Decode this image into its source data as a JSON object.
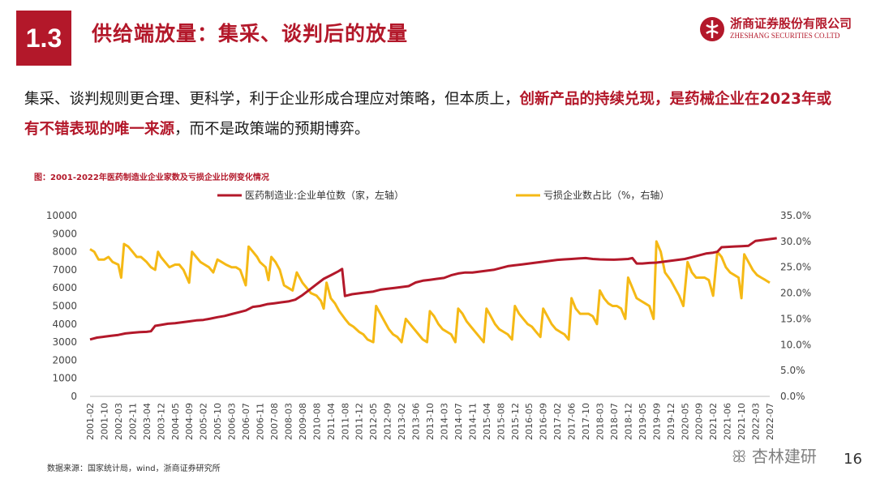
{
  "header": {
    "section_number": "1.3",
    "title": "供给端放量：集采、谈判后的放量",
    "logo_cn": "浙商证券股份有限公司",
    "logo_en": "ZHESHANG SECURITIES CO.LTD"
  },
  "body": {
    "part1": "集采、谈判规则更合理、更科学，利于企业形成合理应对策略，但本质上，",
    "part2_highlight": "创新产品的持续兑现，是药械企业在2023年或有不错表现的唯一来源",
    "part3": "，而不是政策端的预期博弈。"
  },
  "chart_caption": "图：2001-2022年医药制造业企业家数及亏损企业比例变化情况",
  "source": "数据来源：国家统计局，wind，浙商证券研究所",
  "page_number": "16",
  "watermark": "杏林建研",
  "colors": {
    "brand": "#b3182a",
    "series1": "#b3182a",
    "series2": "#f5b915"
  },
  "chart_data": {
    "type": "line",
    "x_tick_labels": [
      "2001-02",
      "2001-10",
      "2002-03",
      "2002-11",
      "2003-04",
      "2003-12",
      "2004-05",
      "2004-09",
      "2005-02",
      "2005-10",
      "2006-03",
      "2006-07",
      "2006-11",
      "2007-08",
      "2008-03",
      "2009-08",
      "2010-08",
      "2011-04",
      "2011-08",
      "2011-12",
      "2012-05",
      "2012-09",
      "2013-02",
      "2013-06",
      "2013-10",
      "2014-03",
      "2014-07",
      "2014-11",
      "2015-04",
      "2015-08",
      "2015-12",
      "2016-05",
      "2016-09",
      "2017-02",
      "2017-06",
      "2017-10",
      "2018-03",
      "2018-07",
      "2018-12",
      "2019-05",
      "2019-09",
      "2019-12",
      "2020-05",
      "2020-09",
      "2021-02",
      "2021-06",
      "2021-10",
      "2022-03",
      "2022-07"
    ],
    "y_left": {
      "min": 0,
      "max": 10000,
      "step": 1000,
      "ticks": [
        "0",
        "1000",
        "2000",
        "3000",
        "4000",
        "5000",
        "6000",
        "7000",
        "8000",
        "9000",
        "10000"
      ]
    },
    "y_right": {
      "min": 0,
      "max": 35,
      "step": 5,
      "ticks": [
        "0.0%",
        "5.0%",
        "10.0%",
        "15.0%",
        "20.0%",
        "25.0%",
        "30.0%",
        "35.0%"
      ]
    },
    "series": [
      {
        "name": "医药制造业:企业单位数（家，左轴）",
        "axis": "left",
        "points": [
          [
            0,
            3150
          ],
          [
            0.5,
            3250
          ],
          [
            1,
            3300
          ],
          [
            1.5,
            3350
          ],
          [
            2,
            3400
          ],
          [
            2.5,
            3480
          ],
          [
            3,
            3520
          ],
          [
            3.5,
            3550
          ],
          [
            4,
            3570
          ],
          [
            4.3,
            3600
          ],
          [
            4.6,
            3900
          ],
          [
            5,
            3950
          ],
          [
            5.5,
            4020
          ],
          [
            6,
            4050
          ],
          [
            6.5,
            4100
          ],
          [
            7,
            4150
          ],
          [
            7.5,
            4200
          ],
          [
            8,
            4230
          ],
          [
            8.5,
            4300
          ],
          [
            9,
            4380
          ],
          [
            9.5,
            4450
          ],
          [
            10,
            4550
          ],
          [
            10.5,
            4650
          ],
          [
            11,
            4750
          ],
          [
            11.5,
            4950
          ],
          [
            12,
            5000
          ],
          [
            12.5,
            5100
          ],
          [
            13,
            5150
          ],
          [
            13.5,
            5200
          ],
          [
            14,
            5250
          ],
          [
            14.5,
            5350
          ],
          [
            15,
            5600
          ],
          [
            15.5,
            5900
          ],
          [
            16,
            6200
          ],
          [
            16.5,
            6500
          ],
          [
            17,
            6700
          ],
          [
            17.5,
            6900
          ],
          [
            17.8,
            7050
          ],
          [
            18,
            5550
          ],
          [
            18.5,
            5650
          ],
          [
            19,
            5700
          ],
          [
            19.5,
            5750
          ],
          [
            20,
            5800
          ],
          [
            20.5,
            5900
          ],
          [
            21,
            5950
          ],
          [
            21.5,
            6000
          ],
          [
            22,
            6050
          ],
          [
            22.5,
            6100
          ],
          [
            23,
            6300
          ],
          [
            23.5,
            6400
          ],
          [
            24,
            6450
          ],
          [
            24.5,
            6500
          ],
          [
            25,
            6550
          ],
          [
            25.5,
            6700
          ],
          [
            26,
            6800
          ],
          [
            26.5,
            6850
          ],
          [
            27,
            6850
          ],
          [
            27.5,
            6900
          ],
          [
            28,
            6950
          ],
          [
            28.5,
            7000
          ],
          [
            29,
            7100
          ],
          [
            29.5,
            7200
          ],
          [
            30,
            7250
          ],
          [
            30.5,
            7300
          ],
          [
            31,
            7350
          ],
          [
            31.5,
            7400
          ],
          [
            32,
            7450
          ],
          [
            32.5,
            7500
          ],
          [
            33,
            7550
          ],
          [
            33.5,
            7580
          ],
          [
            34,
            7600
          ],
          [
            34.5,
            7630
          ],
          [
            35,
            7650
          ],
          [
            35.5,
            7600
          ],
          [
            36,
            7580
          ],
          [
            36.5,
            7570
          ],
          [
            37,
            7560
          ],
          [
            37.5,
            7580
          ],
          [
            38,
            7600
          ],
          [
            38.3,
            7650
          ],
          [
            38.6,
            7350
          ],
          [
            39,
            7350
          ],
          [
            39.5,
            7380
          ],
          [
            40,
            7400
          ],
          [
            40.5,
            7450
          ],
          [
            41,
            7500
          ],
          [
            41.5,
            7550
          ],
          [
            42,
            7600
          ],
          [
            42.5,
            7700
          ],
          [
            43,
            7800
          ],
          [
            43.5,
            7900
          ],
          [
            44,
            7950
          ],
          [
            44.3,
            8000
          ],
          [
            44.6,
            8250
          ],
          [
            45,
            8270
          ],
          [
            45.5,
            8290
          ],
          [
            46,
            8310
          ],
          [
            46.5,
            8330
          ],
          [
            47,
            8600
          ],
          [
            47.5,
            8650
          ],
          [
            48,
            8700
          ],
          [
            48.5,
            8750
          ]
        ]
      },
      {
        "name": "亏损企业数占比（%，右轴）",
        "axis": "right",
        "points": [
          [
            0,
            28.5
          ],
          [
            0.3,
            28.0
          ],
          [
            0.6,
            26.5
          ],
          [
            1,
            26.5
          ],
          [
            1.3,
            27.0
          ],
          [
            1.6,
            26.0
          ],
          [
            2,
            25.5
          ],
          [
            2.2,
            23.0
          ],
          [
            2.4,
            29.5
          ],
          [
            2.7,
            29.0
          ],
          [
            3,
            28.0
          ],
          [
            3.3,
            27.0
          ],
          [
            3.6,
            27.0
          ],
          [
            4,
            26.0
          ],
          [
            4.3,
            25.0
          ],
          [
            4.6,
            24.5
          ],
          [
            4.8,
            28.0
          ],
          [
            5,
            27.0
          ],
          [
            5.3,
            26.0
          ],
          [
            5.6,
            25.0
          ],
          [
            6,
            25.5
          ],
          [
            6.3,
            25.5
          ],
          [
            6.6,
            24.5
          ],
          [
            7,
            22.0
          ],
          [
            7.2,
            28.0
          ],
          [
            7.5,
            27.0
          ],
          [
            7.8,
            26.0
          ],
          [
            8.1,
            25.5
          ],
          [
            8.4,
            25.0
          ],
          [
            8.7,
            24.0
          ],
          [
            9,
            26.5
          ],
          [
            9.3,
            26.0
          ],
          [
            9.6,
            25.5
          ],
          [
            10,
            25.0
          ],
          [
            10.3,
            25.0
          ],
          [
            10.6,
            24.5
          ],
          [
            11,
            21.5
          ],
          [
            11.2,
            29.0
          ],
          [
            11.5,
            28.0
          ],
          [
            11.8,
            27.0
          ],
          [
            12,
            26.0
          ],
          [
            12.4,
            25.0
          ],
          [
            12.6,
            22.5
          ],
          [
            12.8,
            27.0
          ],
          [
            13.1,
            26.0
          ],
          [
            13.4,
            24.5
          ],
          [
            13.7,
            21.5
          ],
          [
            14,
            21.0
          ],
          [
            14.3,
            20.5
          ],
          [
            14.6,
            24.0
          ],
          [
            15,
            22.0
          ],
          [
            15.3,
            21.0
          ],
          [
            15.6,
            20.0
          ],
          [
            16,
            19.5
          ],
          [
            16.3,
            18.5
          ],
          [
            16.5,
            17.0
          ],
          [
            16.7,
            22.0
          ],
          [
            17,
            19.0
          ],
          [
            17.3,
            18.0
          ],
          [
            17.6,
            16.5
          ],
          [
            18,
            15.0
          ],
          [
            18.3,
            14.0
          ],
          [
            18.6,
            13.5
          ],
          [
            19,
            12.5
          ],
          [
            19.3,
            12.0
          ],
          [
            19.6,
            11.0
          ],
          [
            20,
            10.5
          ],
          [
            20.2,
            17.5
          ],
          [
            20.5,
            16.0
          ],
          [
            20.8,
            14.5
          ],
          [
            21.1,
            13.0
          ],
          [
            21.4,
            12.0
          ],
          [
            21.7,
            11.5
          ],
          [
            22,
            10.5
          ],
          [
            22.3,
            15.0
          ],
          [
            22.6,
            14.0
          ],
          [
            22.9,
            13.0
          ],
          [
            23.2,
            12.0
          ],
          [
            23.5,
            11.0
          ],
          [
            23.8,
            10.5
          ],
          [
            24,
            16.5
          ],
          [
            24.3,
            15.5
          ],
          [
            24.6,
            14.0
          ],
          [
            24.9,
            13.0
          ],
          [
            25.2,
            12.5
          ],
          [
            25.5,
            12.0
          ],
          [
            25.8,
            10.5
          ],
          [
            26,
            17.0
          ],
          [
            26.3,
            16.0
          ],
          [
            26.6,
            14.5
          ],
          [
            26.9,
            13.5
          ],
          [
            27.2,
            12.5
          ],
          [
            27.5,
            11.5
          ],
          [
            27.8,
            10.5
          ],
          [
            28,
            17.0
          ],
          [
            28.3,
            15.5
          ],
          [
            28.6,
            14.0
          ],
          [
            28.9,
            13.0
          ],
          [
            29.2,
            12.5
          ],
          [
            29.5,
            12.0
          ],
          [
            29.8,
            11.0
          ],
          [
            30,
            17.5
          ],
          [
            30.3,
            16.0
          ],
          [
            30.6,
            15.0
          ],
          [
            30.9,
            14.0
          ],
          [
            31.2,
            13.5
          ],
          [
            31.5,
            12.5
          ],
          [
            31.8,
            11.5
          ],
          [
            32,
            17.0
          ],
          [
            32.3,
            15.5
          ],
          [
            32.6,
            14.0
          ],
          [
            32.9,
            13.0
          ],
          [
            33.2,
            12.5
          ],
          [
            33.5,
            12.0
          ],
          [
            33.8,
            11.0
          ],
          [
            34,
            19.0
          ],
          [
            34.3,
            17.0
          ],
          [
            34.6,
            16.0
          ],
          [
            34.9,
            16.0
          ],
          [
            35.2,
            16.0
          ],
          [
            35.5,
            15.5
          ],
          [
            35.8,
            14.0
          ],
          [
            36,
            20.5
          ],
          [
            36.3,
            19.0
          ],
          [
            36.6,
            18.0
          ],
          [
            36.9,
            17.5
          ],
          [
            37.2,
            17.5
          ],
          [
            37.5,
            17.0
          ],
          [
            37.8,
            15.0
          ],
          [
            38,
            23.0
          ],
          [
            38.3,
            21.0
          ],
          [
            38.6,
            19.0
          ],
          [
            38.9,
            18.5
          ],
          [
            39.2,
            18.0
          ],
          [
            39.5,
            17.5
          ],
          [
            39.8,
            15.0
          ],
          [
            40,
            30.0
          ],
          [
            40.3,
            28.0
          ],
          [
            40.6,
            24.0
          ],
          [
            41,
            22.5
          ],
          [
            41.3,
            21.0
          ],
          [
            41.6,
            19.5
          ],
          [
            41.9,
            17.5
          ],
          [
            42.2,
            26.0
          ],
          [
            42.5,
            24.0
          ],
          [
            42.8,
            23.0
          ],
          [
            43.1,
            23.0
          ],
          [
            43.4,
            23.0
          ],
          [
            43.7,
            22.5
          ],
          [
            44,
            19.5
          ],
          [
            44.3,
            28.0
          ],
          [
            44.6,
            27.0
          ],
          [
            44.9,
            25.0
          ],
          [
            45.2,
            24.0
          ],
          [
            45.5,
            23.5
          ],
          [
            45.8,
            23.0
          ],
          [
            46,
            19.0
          ],
          [
            46.2,
            27.5
          ],
          [
            46.5,
            26.0
          ],
          [
            46.8,
            24.5
          ],
          [
            47.1,
            23.5
          ],
          [
            47.4,
            23.0
          ],
          [
            47.7,
            22.5
          ],
          [
            48,
            22.0
          ]
        ]
      }
    ],
    "grid": false,
    "legend": "top"
  }
}
